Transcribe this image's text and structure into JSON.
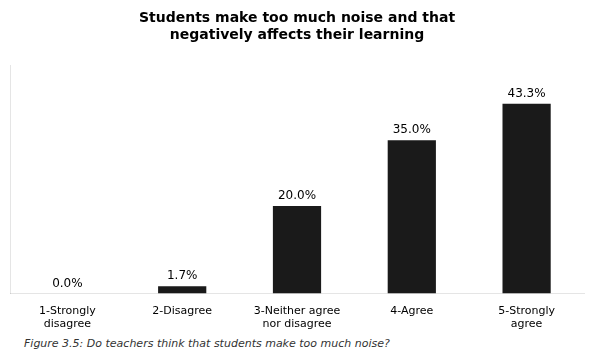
{
  "chart_data": {
    "type": "bar",
    "title": "Students make too much noise and that\nnegatively affects their learning",
    "categories": [
      "1-Strongly\ndisagree",
      "2-Disagree",
      "3-Neither agree\nnor disagree",
      "4-Agree",
      "5-Strongly\nagree"
    ],
    "values": [
      0.0,
      1.7,
      20.0,
      35.0,
      43.3
    ],
    "value_labels": [
      "0.0%",
      "1.7%",
      "20.0%",
      "35.0%",
      "43.3%"
    ],
    "data_labels": true,
    "color": "#1a1a1a",
    "ylim": [
      0,
      52
    ],
    "tick_labels": "x",
    "grid": false,
    "caption": "Figure 3.5: Do teachers think that students make too much noise?"
  }
}
